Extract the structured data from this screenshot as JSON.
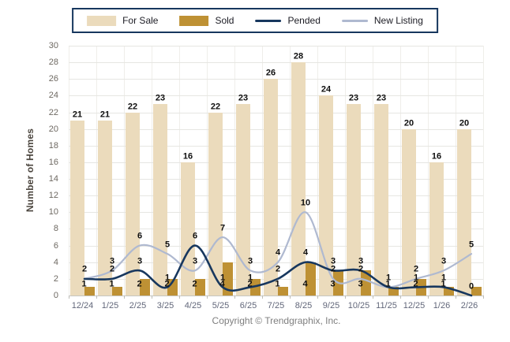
{
  "legend": {
    "items": [
      {
        "label": "For Sale",
        "swatch": "bar",
        "color": "#EBDBBC"
      },
      {
        "label": "Sold",
        "swatch": "bar",
        "color": "#BE9134"
      },
      {
        "label": "Pended",
        "swatch": "line",
        "color": "#17375E"
      },
      {
        "label": "New Listing",
        "swatch": "line",
        "color": "#AFB9D0"
      }
    ]
  },
  "axes": {
    "y_title": "Number of Homes",
    "y_ticks": [
      0,
      2,
      4,
      6,
      8,
      10,
      12,
      14,
      16,
      18,
      20,
      22,
      24,
      26,
      28,
      30
    ],
    "x_labels": [
      "12/24",
      "1/25",
      "2/25",
      "3/25",
      "4/25",
      "5/25",
      "6/25",
      "7/25",
      "8/25",
      "9/25",
      "10/25",
      "11/25",
      "12/25",
      "1/26",
      "2/26"
    ]
  },
  "footer": {
    "copyright": "Copyright © Trendgraphix, Inc."
  },
  "chart_data": {
    "type": "bar",
    "subtype": "grouped-bars-with-smooth-lines",
    "title": "",
    "xlabel": "",
    "ylabel": "Number of Homes",
    "ylim": [
      0,
      30
    ],
    "grid": true,
    "legend_position": "top-center",
    "categories": [
      "12/24",
      "1/25",
      "2/25",
      "3/25",
      "4/25",
      "5/25",
      "6/25",
      "7/25",
      "8/25",
      "9/25",
      "10/25",
      "11/25",
      "12/25",
      "1/26",
      "2/26"
    ],
    "series": [
      {
        "name": "For Sale",
        "type": "bar",
        "color": "#EBDBBC",
        "values": [
          21,
          21,
          22,
          23,
          16,
          22,
          23,
          26,
          28,
          24,
          23,
          23,
          20,
          16,
          20
        ],
        "labels": [
          "21",
          "21",
          "22",
          "23",
          "16",
          "22",
          "23",
          "26",
          "28",
          "24",
          "23",
          "23",
          "20",
          "16",
          "20"
        ]
      },
      {
        "name": "Sold",
        "type": "bar",
        "color": "#BE9134",
        "values": [
          1,
          1,
          2,
          2,
          2,
          4,
          2,
          1,
          4,
          3,
          3,
          1,
          2,
          1,
          1
        ],
        "labels": [
          "1",
          "1",
          "2",
          "2",
          "2",
          "4",
          "2",
          "1",
          "4",
          "3",
          "3",
          "1",
          "2",
          "1",
          ""
        ]
      },
      {
        "name": "Pended",
        "type": "line",
        "color": "#17375E",
        "values": [
          2,
          2,
          3,
          1,
          6,
          1,
          1,
          2,
          4,
          3,
          3,
          1,
          1,
          1,
          0
        ],
        "labels": [
          "2",
          "2",
          "3",
          "1",
          "6",
          "1",
          "1",
          "2",
          "4",
          "3",
          "3",
          "1",
          "1",
          "1",
          "0"
        ]
      },
      {
        "name": "New Listing",
        "type": "line",
        "color": "#AFB9D0",
        "values": [
          2,
          3,
          6,
          5,
          3,
          7,
          3,
          4,
          10,
          2,
          2,
          1,
          2,
          3,
          5
        ],
        "labels": [
          "",
          "3",
          "6",
          "5",
          "3",
          "7",
          "3",
          "4",
          "10",
          "2",
          "2",
          "",
          "2",
          "3",
          "5"
        ]
      }
    ]
  }
}
